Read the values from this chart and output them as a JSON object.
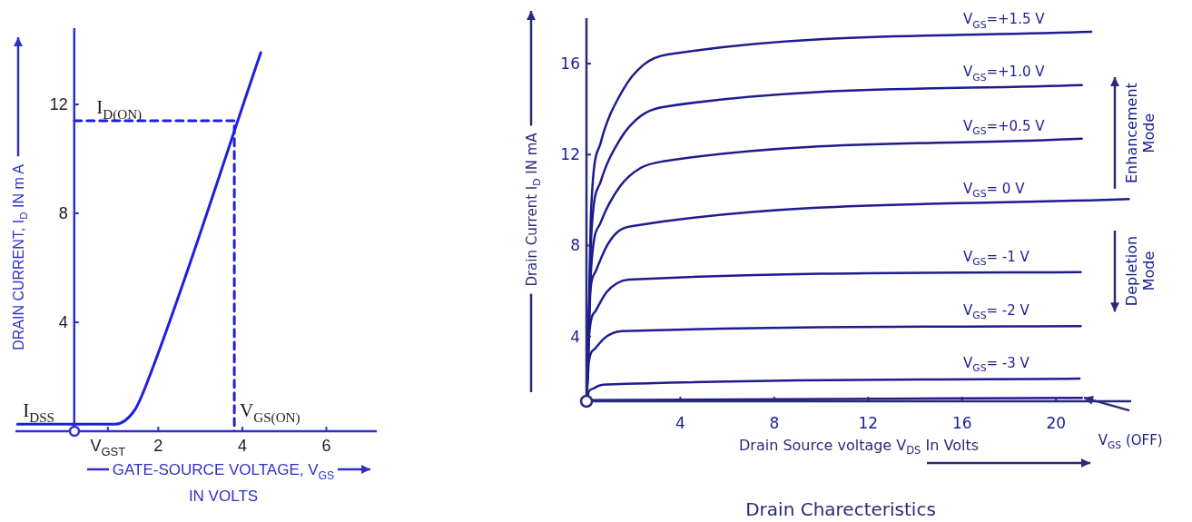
{
  "chart_data": [
    {
      "type": "line",
      "xlabel": "GATE-SOURCE VOLTAGE, V$_{GS}$ IN VOLTS",
      "ylabel": "DRAIN CURRENT, I$_{D}$ IN m A",
      "xlim": [
        -1.4,
        7.2
      ],
      "ylim": [
        0,
        14.8
      ],
      "xticks": [
        {
          "value": 0.8,
          "label": "V$_{GST}$"
        },
        2,
        4,
        6
      ],
      "yticks": [
        4,
        8,
        12
      ],
      "marker": "none",
      "annotations": [
        {
          "text": "I$_{D(ON)}$",
          "x": 0.4,
          "y": 11.4
        },
        {
          "text": "I$_{DSS}$",
          "x": -1.35,
          "y": 0.26
        },
        {
          "text": "V$_{GS(ON)}$",
          "x": 3.81,
          "y": 0.26
        }
      ],
      "series": [
        {
          "color": "#1f1fe0",
          "x": [
            -1.35,
            0.97,
            1.44,
            1.75,
            4.44
          ],
          "values": [
            0.26,
            0.26,
            0.78,
            1.85,
            13.9
          ]
        },
        {
          "color": "#1f1fe0",
          "line_style": "dashed",
          "x": [
            0,
            3.81,
            3.81
          ],
          "values": [
            11.4,
            11.4,
            0
          ]
        }
      ]
    },
    {
      "type": "line",
      "title": "Drain Charecteristics",
      "xlabel": "Drain Source voltage V$_{DS}$ In Volts",
      "ylabel": "Drain Current I$_{D}$ IN mA",
      "xlim": [
        0,
        23.2
      ],
      "ylim": [
        1.15,
        18
      ],
      "xticks": [
        4,
        8,
        12,
        16,
        20
      ],
      "yticks": [
        4,
        8,
        12,
        16
      ],
      "marker": "none",
      "annotations": [
        "Enhancement Mode",
        "Depletion Mode"
      ],
      "series": [
        {
          "name": "V$_{GS}$=+1.5 V",
          "color": "#1c1c8f",
          "x": [
            0,
            0.1,
            0.2,
            0.6,
            1.53,
            2.43,
            3.46,
            21.5
          ],
          "values": [
            1.2,
            5,
            9.6,
            12.5,
            14.8,
            15.95,
            16.4,
            17.4
          ]
        },
        {
          "name": "V$_{GS}$=+1.0 V",
          "color": "#1c1c8f",
          "x": [
            0,
            0.1,
            0.2,
            0.6,
            1.45,
            2.31,
            3.3,
            21.1
          ],
          "values": [
            1.2,
            4.4,
            8.35,
            10.8,
            12.7,
            13.7,
            14.1,
            15.06
          ]
        },
        {
          "name": "V$_{GS}$=+0.5 V",
          "color": "#1c1c8f",
          "x": [
            0,
            0.1,
            0.2,
            0.6,
            1.43,
            2.29,
            3.26,
            21.1
          ],
          "values": [
            1.2,
            3.83,
            7.02,
            9.0,
            10.6,
            11.4,
            11.7,
            12.7
          ]
        },
        {
          "name": "V$_{GS}$= 0 V",
          "color": "#1c1c8f",
          "x": [
            0,
            0.06,
            0.12,
            0.4,
            0.9,
            1.35,
            1.9,
            23.1
          ],
          "values": [
            1.2,
            3.11,
            5.44,
            6.88,
            8.04,
            8.62,
            8.85,
            10.04
          ]
        },
        {
          "name": "V$_{GS}$= -1 V",
          "color": "#1c1c8f",
          "x": [
            0,
            0.06,
            0.12,
            0.4,
            0.85,
            1.3,
            1.8,
            21.05
          ],
          "values": [
            1.2,
            2.53,
            4.14,
            5.14,
            5.94,
            6.34,
            6.5,
            6.83
          ]
        },
        {
          "name": "V$_{GS}$= -2 V",
          "color": "#1c1c8f",
          "x": [
            0,
            0.05,
            0.1,
            0.35,
            0.75,
            1.1,
            1.5,
            21.05
          ],
          "values": [
            1.2,
            1.96,
            2.88,
            3.45,
            3.91,
            4.14,
            4.23,
            4.45
          ]
        },
        {
          "name": "V$_{GS}$= -3 V",
          "color": "#1c1c8f",
          "x": [
            0,
            0.05,
            0.1,
            0.3,
            0.5,
            0.65,
            0.9,
            21.0
          ],
          "values": [
            1.2,
            1.37,
            1.58,
            1.71,
            1.82,
            1.87,
            1.89,
            2.15
          ]
        },
        {
          "name": "V$_{GS}$ (OFF)",
          "color": "#1c1c8f",
          "x": [
            0,
            21.1
          ],
          "values": [
            1.2,
            1.3
          ]
        }
      ]
    }
  ]
}
